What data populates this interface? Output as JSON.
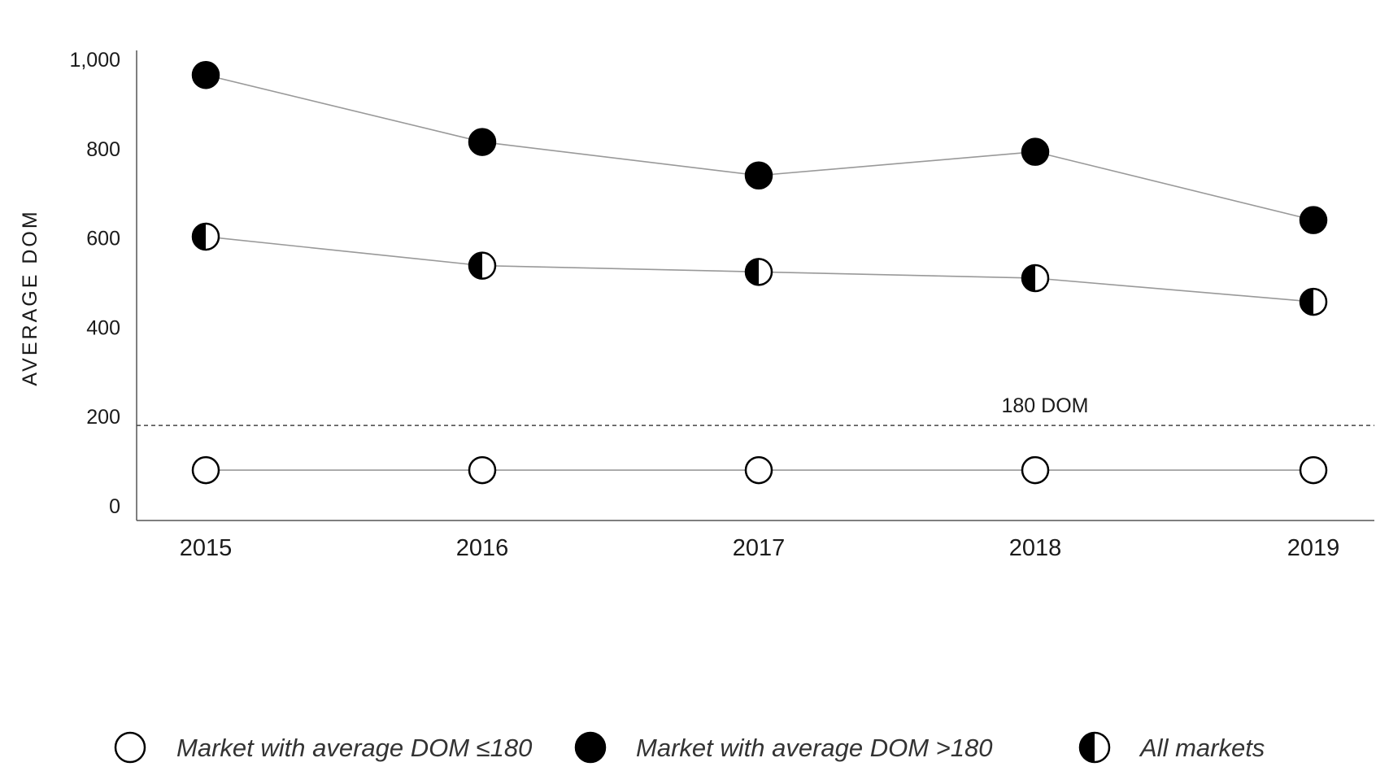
{
  "chart_data": {
    "type": "line",
    "title": "",
    "xlabel": "",
    "ylabel": "AVERAGE DOM",
    "x": [
      "2015",
      "2016",
      "2017",
      "2018",
      "2019"
    ],
    "yticks": [
      "0",
      "200",
      "400",
      "600",
      "800",
      "1,000"
    ],
    "ylim": [
      0,
      1000
    ],
    "grid": false,
    "legend_position": "bottom",
    "reference_line": {
      "value": 180,
      "label": "180 DOM",
      "style": "dashed"
    },
    "series": [
      {
        "name": "Market with average DOM ≤180",
        "marker": "open-circle",
        "values": [
          80,
          80,
          80,
          80,
          80
        ]
      },
      {
        "name": "Market with average DOM >180",
        "marker": "filled-circle",
        "values": [
          965,
          815,
          740,
          793,
          640
        ]
      },
      {
        "name": "All markets",
        "marker": "half-filled-circle",
        "values": [
          603,
          538,
          524,
          510,
          457
        ]
      }
    ],
    "colors": {
      "marker": "#000000",
      "line": "#999999",
      "axis": "#555555"
    }
  }
}
